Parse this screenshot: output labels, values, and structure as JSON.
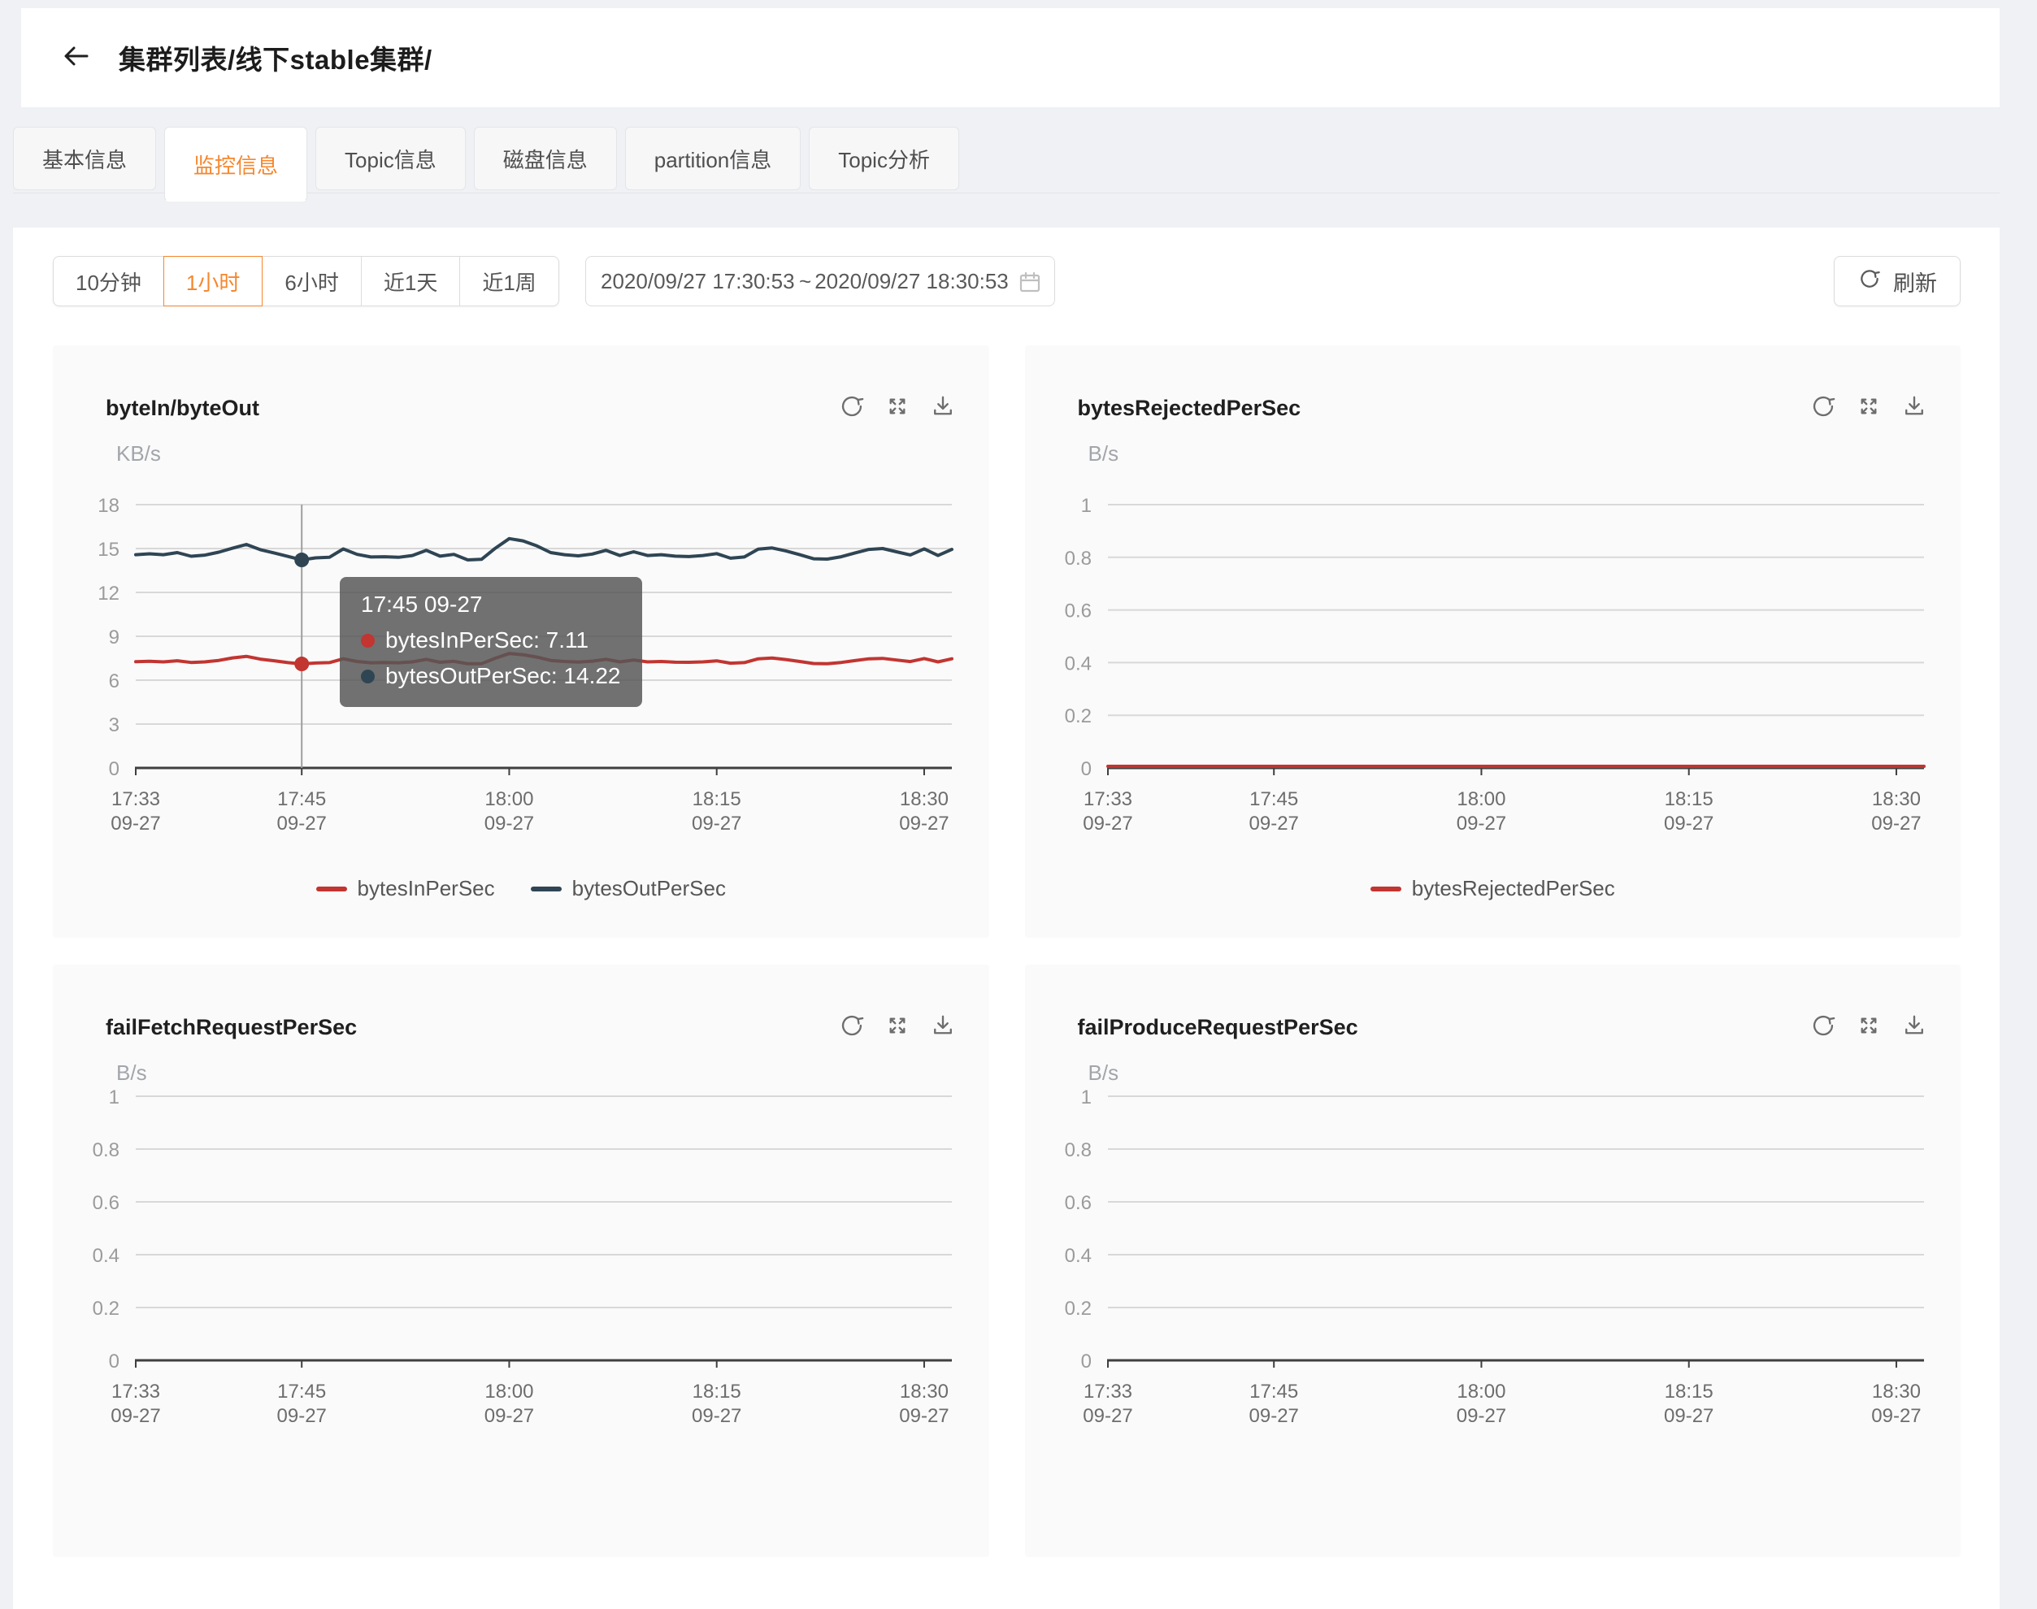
{
  "header": {
    "breadcrumb": "集群列表/线下stable集群/",
    "back_icon": "arrow-left-icon"
  },
  "tabs": [
    {
      "label": "基本信息",
      "active": false
    },
    {
      "label": "监控信息",
      "active": true
    },
    {
      "label": "Topic信息",
      "active": false
    },
    {
      "label": "磁盘信息",
      "active": false
    },
    {
      "label": "partition信息",
      "active": false
    },
    {
      "label": "Topic分析",
      "active": false
    }
  ],
  "toolbar": {
    "ranges": [
      {
        "label": "10分钟",
        "active": false
      },
      {
        "label": "1小时",
        "active": true
      },
      {
        "label": "6小时",
        "active": false
      },
      {
        "label": "近1天",
        "active": false
      },
      {
        "label": "近1周",
        "active": false
      }
    ],
    "date_start": "2020/09/27 17:30:53",
    "date_separator": "~",
    "date_end": "2020/09/27 18:30:53",
    "date_icon": "calendar-icon",
    "refresh_label": "刷新",
    "refresh_icon": "reload-icon"
  },
  "card_action_icons": [
    "reload-icon",
    "fullscreen-icon",
    "download-icon"
  ],
  "colors": {
    "accent_orange": "#f5872e",
    "series_red": "#c23531",
    "series_navy": "#2f4554",
    "tooltip_bg": "rgba(86,86,86,0.84)"
  },
  "chart_data": [
    {
      "type": "line",
      "title": "byteIn/byteOut",
      "ylabel": "KB/s",
      "ylim": [
        0,
        18
      ],
      "y_ticks": [
        0,
        3,
        6,
        9,
        12,
        15,
        18
      ],
      "grid": true,
      "legend_position": "bottom",
      "x_total_min": 59,
      "x_ticks": [
        {
          "time": "17:33",
          "date": "09-27",
          "min": 0
        },
        {
          "time": "17:45",
          "date": "09-27",
          "min": 12
        },
        {
          "time": "18:00",
          "date": "09-27",
          "min": 27
        },
        {
          "time": "18:15",
          "date": "09-27",
          "min": 42
        },
        {
          "time": "18:30",
          "date": "09-27",
          "min": 57
        }
      ],
      "series": [
        {
          "name": "bytesInPerSec",
          "color": "#c23531",
          "values": [
            7.26,
            7.29,
            7.25,
            7.33,
            7.21,
            7.25,
            7.35,
            7.52,
            7.63,
            7.44,
            7.33,
            7.2,
            7.11,
            7.17,
            7.2,
            7.46,
            7.28,
            7.19,
            7.21,
            7.19,
            7.25,
            7.42,
            7.22,
            7.29,
            7.12,
            7.13,
            7.5,
            7.82,
            7.74,
            7.58,
            7.35,
            7.28,
            7.24,
            7.3,
            7.43,
            7.25,
            7.38,
            7.25,
            7.28,
            7.23,
            7.22,
            7.25,
            7.32,
            7.16,
            7.2,
            7.46,
            7.51,
            7.41,
            7.28,
            7.14,
            7.13,
            7.21,
            7.34,
            7.46,
            7.49,
            7.38,
            7.27,
            7.48,
            7.25,
            7.46
          ]
        },
        {
          "name": "bytesOutPerSec",
          "color": "#2f4554",
          "values": [
            14.58,
            14.64,
            14.58,
            14.72,
            14.47,
            14.55,
            14.75,
            15.02,
            15.28,
            14.92,
            14.7,
            14.46,
            14.22,
            14.36,
            14.4,
            14.97,
            14.6,
            14.42,
            14.44,
            14.4,
            14.52,
            14.88,
            14.48,
            14.6,
            14.22,
            14.26,
            15.02,
            15.68,
            15.52,
            15.18,
            14.72,
            14.58,
            14.5,
            14.62,
            14.88,
            14.52,
            14.78,
            14.52,
            14.58,
            14.48,
            14.45,
            14.52,
            14.65,
            14.34,
            14.42,
            14.96,
            15.04,
            14.84,
            14.58,
            14.3,
            14.28,
            14.44,
            14.7,
            14.94,
            15.0,
            14.78,
            14.56,
            14.98,
            14.52,
            14.94
          ]
        }
      ],
      "legend": [
        "bytesInPerSec",
        "bytesOutPerSec"
      ],
      "crosshair_min": 12,
      "tooltip": {
        "title": "17:45 09-27",
        "items": [
          {
            "name": "bytesInPerSec",
            "value": "7.11",
            "color": "#c23531"
          },
          {
            "name": "bytesOutPerSec",
            "value": "14.22",
            "color": "#2f4554"
          }
        ]
      }
    },
    {
      "type": "line",
      "title": "bytesRejectedPerSec",
      "ylabel": "B/s",
      "ylim": [
        0,
        1
      ],
      "y_ticks": [
        0,
        0.2,
        0.4,
        0.6,
        0.8,
        1
      ],
      "grid": true,
      "legend_position": "bottom",
      "x_total_min": 59,
      "x_ticks": [
        {
          "time": "17:33",
          "date": "09-27",
          "min": 0
        },
        {
          "time": "17:45",
          "date": "09-27",
          "min": 12
        },
        {
          "time": "18:00",
          "date": "09-27",
          "min": 27
        },
        {
          "time": "18:15",
          "date": "09-27",
          "min": 42
        },
        {
          "time": "18:30",
          "date": "09-27",
          "min": 57
        }
      ],
      "series": [
        {
          "name": "bytesRejectedPerSec",
          "color": "#c23531",
          "values": [
            0,
            0
          ]
        }
      ],
      "legend": [
        "bytesRejectedPerSec"
      ]
    },
    {
      "type": "line",
      "title": "failFetchRequestPerSec",
      "ylabel": "B/s",
      "ylim": [
        0,
        1
      ],
      "y_ticks": [
        0,
        0.2,
        0.4,
        0.6,
        0.8,
        1
      ],
      "grid": true,
      "x_total_min": 59,
      "x_ticks": [
        {
          "time": "17:33",
          "date": "09-27",
          "min": 0
        },
        {
          "time": "17:45",
          "date": "09-27",
          "min": 12
        },
        {
          "time": "18:00",
          "date": "09-27",
          "min": 27
        },
        {
          "time": "18:15",
          "date": "09-27",
          "min": 42
        },
        {
          "time": "18:30",
          "date": "09-27",
          "min": 57
        }
      ],
      "series": []
    },
    {
      "type": "line",
      "title": "failProduceRequestPerSec",
      "ylabel": "B/s",
      "ylim": [
        0,
        1
      ],
      "y_ticks": [
        0,
        0.2,
        0.4,
        0.6,
        0.8,
        1
      ],
      "grid": true,
      "x_total_min": 59,
      "x_ticks": [
        {
          "time": "17:33",
          "date": "09-27",
          "min": 0
        },
        {
          "time": "17:45",
          "date": "09-27",
          "min": 12
        },
        {
          "time": "18:00",
          "date": "09-27",
          "min": 27
        },
        {
          "time": "18:15",
          "date": "09-27",
          "min": 42
        },
        {
          "time": "18:30",
          "date": "09-27",
          "min": 57
        }
      ],
      "series": []
    }
  ]
}
